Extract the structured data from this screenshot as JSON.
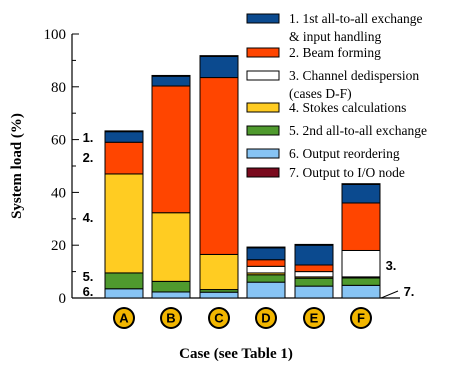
{
  "chart_data": {
    "type": "bar",
    "stacked": true,
    "xlabel": "Case (see Table 1)",
    "ylabel": "System load (%)",
    "ylim": [
      0,
      100
    ],
    "yticks": [
      "0",
      "20",
      "40",
      "60",
      "80",
      "100"
    ],
    "categories": [
      "A",
      "B",
      "C",
      "D",
      "E",
      "F"
    ],
    "series": [
      {
        "name": "6. Output reordering",
        "color": "#87C4F4",
        "values": [
          3.5,
          2.3,
          2.2,
          6.0,
          4.5,
          4.8
        ]
      },
      {
        "name": "5. 2nd all-to-all exchange",
        "color": "#4F9A2E",
        "values": [
          6.0,
          4.0,
          1.0,
          2.8,
          3.0,
          2.8
        ]
      },
      {
        "name": "4. Stokes calculations",
        "color": "#FFCC22",
        "values": [
          37.5,
          26.0,
          13.3,
          0.7,
          0.5,
          0.4
        ]
      },
      {
        "name": "3. Channel dedispersion\n(cases D-F)",
        "color": "#FFFFFF",
        "values": [
          0,
          0,
          0,
          2.5,
          2.0,
          10.0
        ]
      },
      {
        "name": "2. Beam forming",
        "color": "#FF4500",
        "values": [
          12.0,
          48.0,
          67.0,
          2.5,
          2.5,
          18.0
        ]
      },
      {
        "name": "1. 1st all-to-all exchange\n& input handling",
        "color": "#0B4A8F",
        "values": [
          4.0,
          3.7,
          8.0,
          4.5,
          7.5,
          7.0
        ]
      },
      {
        "name": "7. Output to I/O node",
        "color": "#7A0A1E",
        "values": [
          0.3,
          0.3,
          0.3,
          0.3,
          0.3,
          0.3
        ]
      }
    ],
    "legend_order": [
      "1. 1st all-to-all exchange\n& input handling",
      "2. Beam forming",
      "3. Channel dedispersion\n(cases D-F)",
      "4. Stokes calculations",
      "5. 2nd all-to-all exchange",
      "6. Output reordering",
      "7. Output to I/O node"
    ],
    "legend_placement": "top-right",
    "annotations": {
      "bar_A": [
        "1.",
        "2.",
        "4.",
        "5.",
        "6."
      ],
      "bar_F": [
        "3.",
        "7."
      ]
    }
  }
}
